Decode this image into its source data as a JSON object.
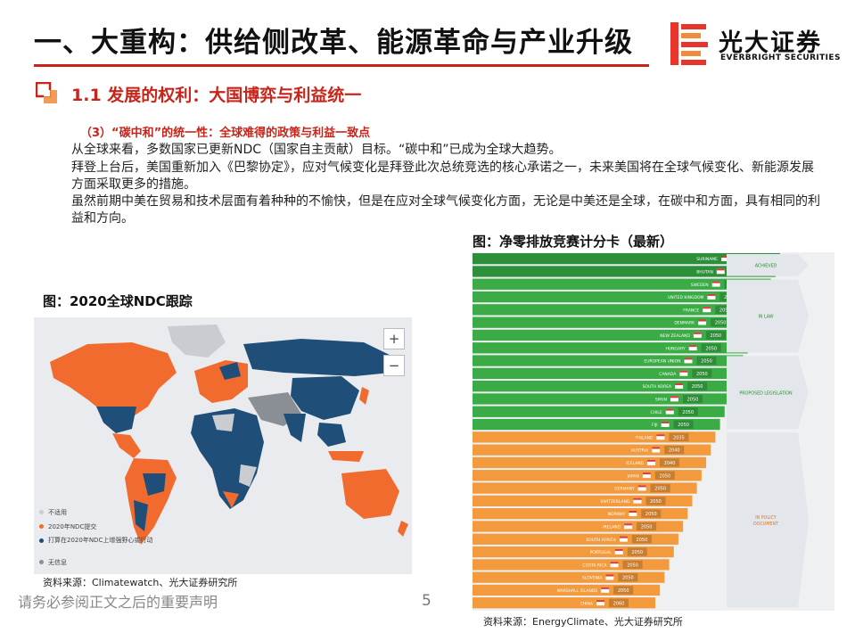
{
  "header": {
    "title": "一、大重构：供给侧改革、能源革命与产业升级",
    "logo_cn": "光大证券",
    "logo_en": "EVERBRIGHT SECURITIES"
  },
  "section": {
    "title": "1.1 发展的权利：大国博弈与利益统一",
    "subtitle": "（3）“碳中和”的统一性：全球难得的政策与利益一致点",
    "paragraphs": [
      "从全球来看，多数国家已更新NDC（国家自主贡献）目标。“碳中和”已成为全球大趋势。",
      "拜登上台后，美国重新加入《巴黎协定》，应对气候变化是拜登此次总统竞选的核心承诺之一，未来美国将在全球气候变化、新能源发展方面采取更多的措施。",
      "虽然前期中美在贸易和技术层面有着种种的不愉快，但是在应对全球气候变化方面，无论是中美还是全球，在碳中和方面，具有相同的利益和方向。"
    ]
  },
  "map_figure": {
    "caption": "图：2020全球NDC跟踪",
    "zoom_in": "+",
    "zoom_out": "−",
    "legend": [
      {
        "label": "不适用",
        "color": "#c9ccd1"
      },
      {
        "label": "2020年NDC提交",
        "color": "#f26b2e"
      },
      {
        "label": "打算在2020年NDC上增强野心或行动",
        "color": "#1f4e79"
      },
      {
        "label": "无信息",
        "color": "#8a8f96"
      }
    ],
    "source": "资料来源：Climatewatch、光大证券研究所"
  },
  "chart_figure": {
    "caption": "图：净零排放竞赛计分卡（最新）",
    "source": "资料来源：EnergyClimate、光大证券研究所"
  },
  "chart_data": {
    "type": "table",
    "title": "净零排放竞赛计分卡（最新）",
    "columns": [
      "country",
      "target_year",
      "status"
    ],
    "groups": [
      {
        "label": "ACHIEVED",
        "color": "#2e9e3e",
        "rows": [
          [
            "SURINAME",
            "-"
          ],
          [
            "BHUTAN",
            "-"
          ]
        ]
      },
      {
        "label": "IN LAW",
        "color": "#3aab45",
        "rows": [
          [
            "SWEDEN",
            "2045"
          ],
          [
            "UNITED KINGDOM",
            "2050"
          ],
          [
            "FRANCE",
            "2050"
          ],
          [
            "DENMARK",
            "2050"
          ],
          [
            "NEW ZEALAND",
            "2050"
          ],
          [
            "HUNGARY",
            "2050"
          ]
        ]
      },
      {
        "label": "PROPOSED LEGISLATION",
        "color": "#3aab45",
        "rows": [
          [
            "EUROPEAN UNION",
            "2050"
          ],
          [
            "CANADA",
            "2050"
          ],
          [
            "SOUTH KOREA",
            "2050"
          ],
          [
            "SPAIN",
            "2050"
          ],
          [
            "CHILE",
            "2050"
          ],
          [
            "FIJI",
            "2050"
          ]
        ]
      },
      {
        "label": "IN POLICY DOCUMENT",
        "color": "#f39a3c",
        "rows": [
          [
            "FINLAND",
            "2035"
          ],
          [
            "AUSTRIA",
            "2040"
          ],
          [
            "ICELAND",
            "2040"
          ],
          [
            "JAPAN",
            "2050"
          ],
          [
            "GERMANY",
            "2050"
          ],
          [
            "SWITZERLAND",
            "2050"
          ],
          [
            "NORWAY",
            "2050"
          ],
          [
            "IRELAND",
            "2050"
          ],
          [
            "SOUTH AFRICA",
            "2050"
          ],
          [
            "PORTUGAL",
            "2050"
          ],
          [
            "COSTA RICA",
            "2050"
          ],
          [
            "SLOVENIA",
            "2050"
          ],
          [
            "MARSHALL ISLANDS",
            "2050"
          ],
          [
            "CHINA",
            "2060"
          ]
        ]
      }
    ]
  },
  "footer": {
    "disclaimer": "请务必参阅正文之后的重要声明",
    "page": "5"
  }
}
